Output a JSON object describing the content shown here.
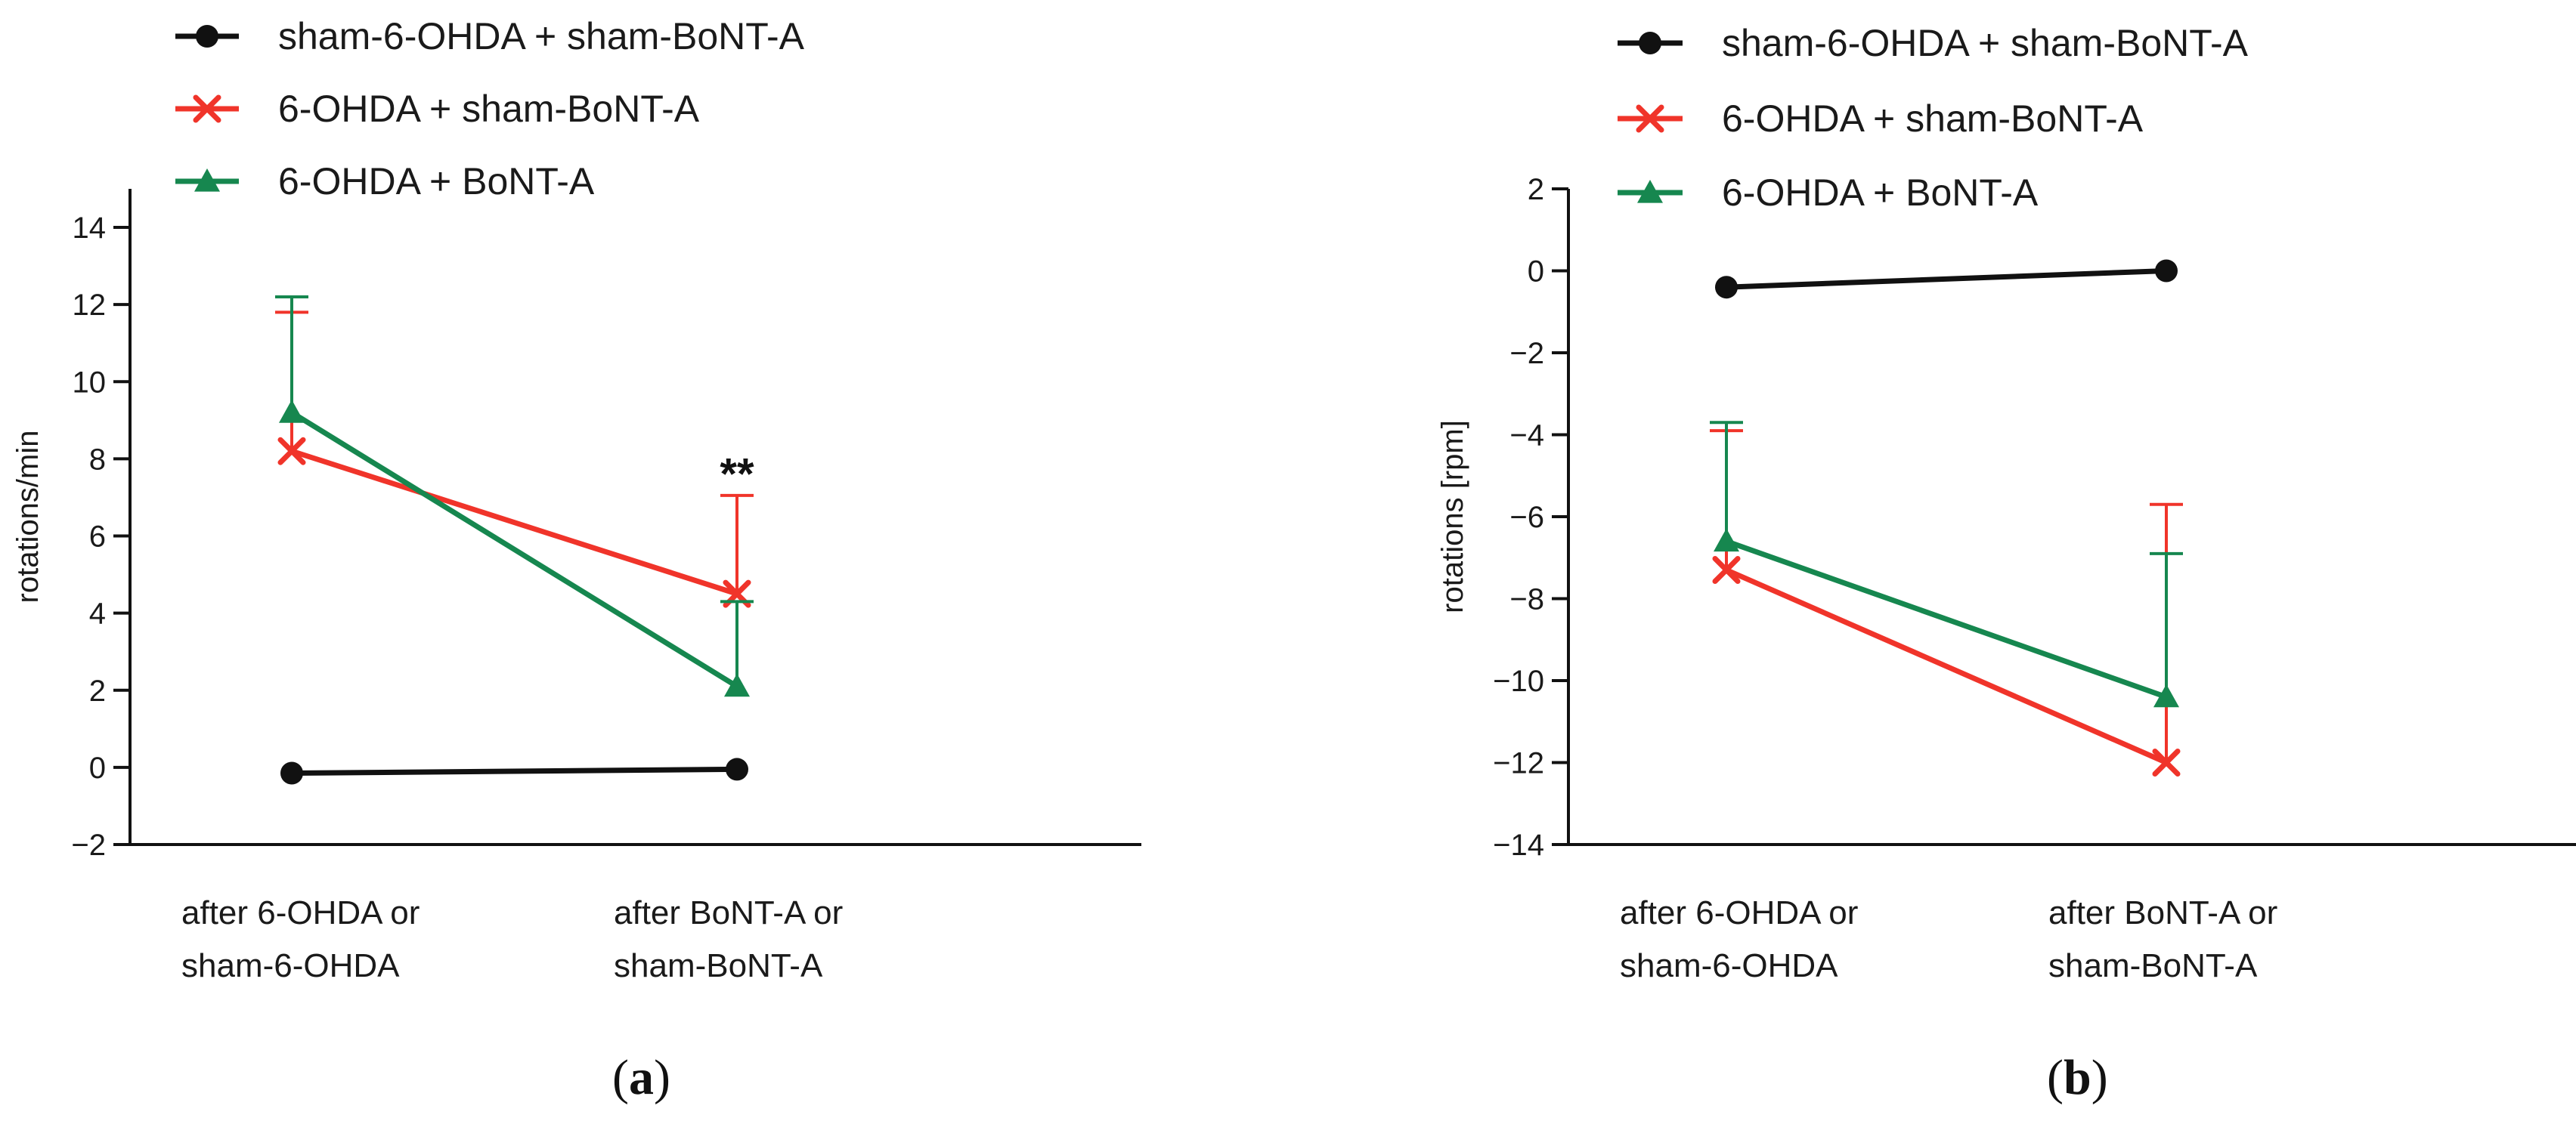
{
  "colors": {
    "sham": "#111111",
    "red": "#f0342a",
    "green": "#16874f"
  },
  "chart_data": [
    {
      "type": "line",
      "panel_label_prefix": "(",
      "panel_label_letter": "a",
      "panel_label_suffix": ")",
      "ylabel": "rotations/min",
      "ylim": [
        -2,
        15
      ],
      "yticks": [
        -2,
        0,
        2,
        4,
        6,
        8,
        10,
        12,
        14
      ],
      "categories": [
        [
          "after 6-OHDA or",
          "sham-6-OHDA"
        ],
        [
          "after BoNT-A or",
          "sham-BoNT-A"
        ]
      ],
      "series": [
        {
          "name": "sham-6-OHDA + sham-BoNT-A",
          "color_key": "sham",
          "marker": "circle",
          "values": [
            -0.15,
            -0.05
          ],
          "errors": [
            0,
            0
          ]
        },
        {
          "name": "6-OHDA + sham-BoNT-A",
          "color_key": "red",
          "marker": "x",
          "values": [
            8.2,
            4.5
          ],
          "errors": [
            3.6,
            2.55
          ]
        },
        {
          "name": "6-OHDA + BoNT-A",
          "color_key": "green",
          "marker": "triangle",
          "values": [
            9.2,
            2.1
          ],
          "errors": [
            3.0,
            2.2
          ]
        }
      ],
      "annotations": [
        {
          "text": "**",
          "category_index": 1,
          "y": 7.8
        }
      ]
    },
    {
      "type": "line",
      "panel_label_prefix": "(",
      "panel_label_letter": "b",
      "panel_label_suffix": ")",
      "ylabel": "rotations [rpm]",
      "ylim": [
        -14,
        2
      ],
      "yticks": [
        -14,
        -12,
        -10,
        -8,
        -6,
        -4,
        -2,
        0,
        2
      ],
      "categories": [
        [
          "after 6-OHDA or",
          "sham-6-OHDA"
        ],
        [
          "after BoNT-A or",
          "sham-BoNT-A"
        ]
      ],
      "series": [
        {
          "name": "sham-6-OHDA + sham-BoNT-A",
          "color_key": "sham",
          "marker": "circle",
          "values": [
            -0.4,
            0.0
          ],
          "errors": [
            0,
            0
          ]
        },
        {
          "name": "6-OHDA + sham-BoNT-A",
          "color_key": "red",
          "marker": "x",
          "values": [
            -7.3,
            -12.0
          ],
          "errors": [
            3.4,
            6.3
          ]
        },
        {
          "name": "6-OHDA + BoNT-A",
          "color_key": "green",
          "marker": "triangle",
          "values": [
            -6.6,
            -10.4
          ],
          "errors": [
            2.9,
            3.5
          ]
        }
      ],
      "annotations": []
    }
  ]
}
